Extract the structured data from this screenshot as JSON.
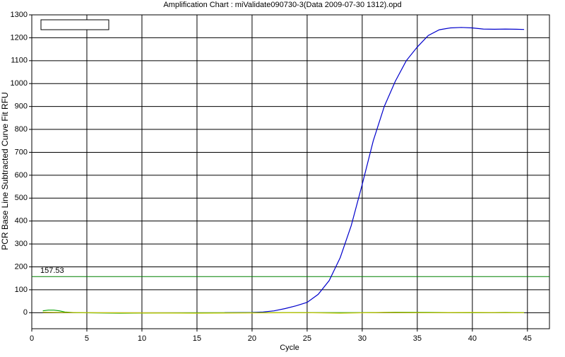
{
  "chart_data": {
    "type": "line",
    "title": "Amplification Chart : miValidate090730-3(Data 2009-07-30 1312).opd",
    "x_label": "Cycle",
    "y_label": "PCR Base Line Subtracted Curve Fit RFU",
    "xlim": [
      0,
      47
    ],
    "xticks": [
      0,
      5,
      10,
      15,
      20,
      25,
      30,
      35,
      40,
      45
    ],
    "ylim": [
      -70,
      1300
    ],
    "yticks": [
      0,
      100,
      200,
      300,
      400,
      500,
      600,
      700,
      800,
      900,
      1000,
      1100,
      1200,
      1300
    ],
    "grid": true,
    "threshold": 157.53,
    "threshold_color": "#008000",
    "series": [
      {
        "color": "#0000cc",
        "x": [
          17.5,
          20,
          21,
          22,
          23,
          24,
          25,
          26,
          27,
          28,
          29,
          30,
          31,
          32,
          33,
          34,
          35,
          36,
          37,
          38,
          39,
          40,
          41,
          42,
          43,
          44,
          44.7
        ],
        "values": [
          0,
          1,
          3,
          8,
          18,
          30,
          45,
          80,
          140,
          240,
          380,
          560,
          750,
          900,
          1010,
          1100,
          1160,
          1210,
          1235,
          1243,
          1245,
          1243,
          1238,
          1237,
          1238,
          1237,
          1236
        ]
      },
      {
        "color": "#00a000",
        "x": [
          1,
          1.5,
          2,
          2.5,
          3,
          4,
          8,
          12,
          20,
          30,
          33,
          40,
          43,
          44.7
        ],
        "values": [
          8,
          11,
          11,
          8,
          3,
          0,
          -2,
          -1,
          0,
          0,
          2,
          0,
          1,
          0
        ]
      },
      {
        "color": "#c8c800",
        "x": [
          1,
          5,
          10,
          15,
          20,
          25,
          28,
          32,
          36,
          40,
          44.7
        ],
        "values": [
          2,
          0,
          -1,
          -2,
          -1,
          0,
          -2,
          1,
          0,
          1,
          0
        ]
      }
    ]
  }
}
